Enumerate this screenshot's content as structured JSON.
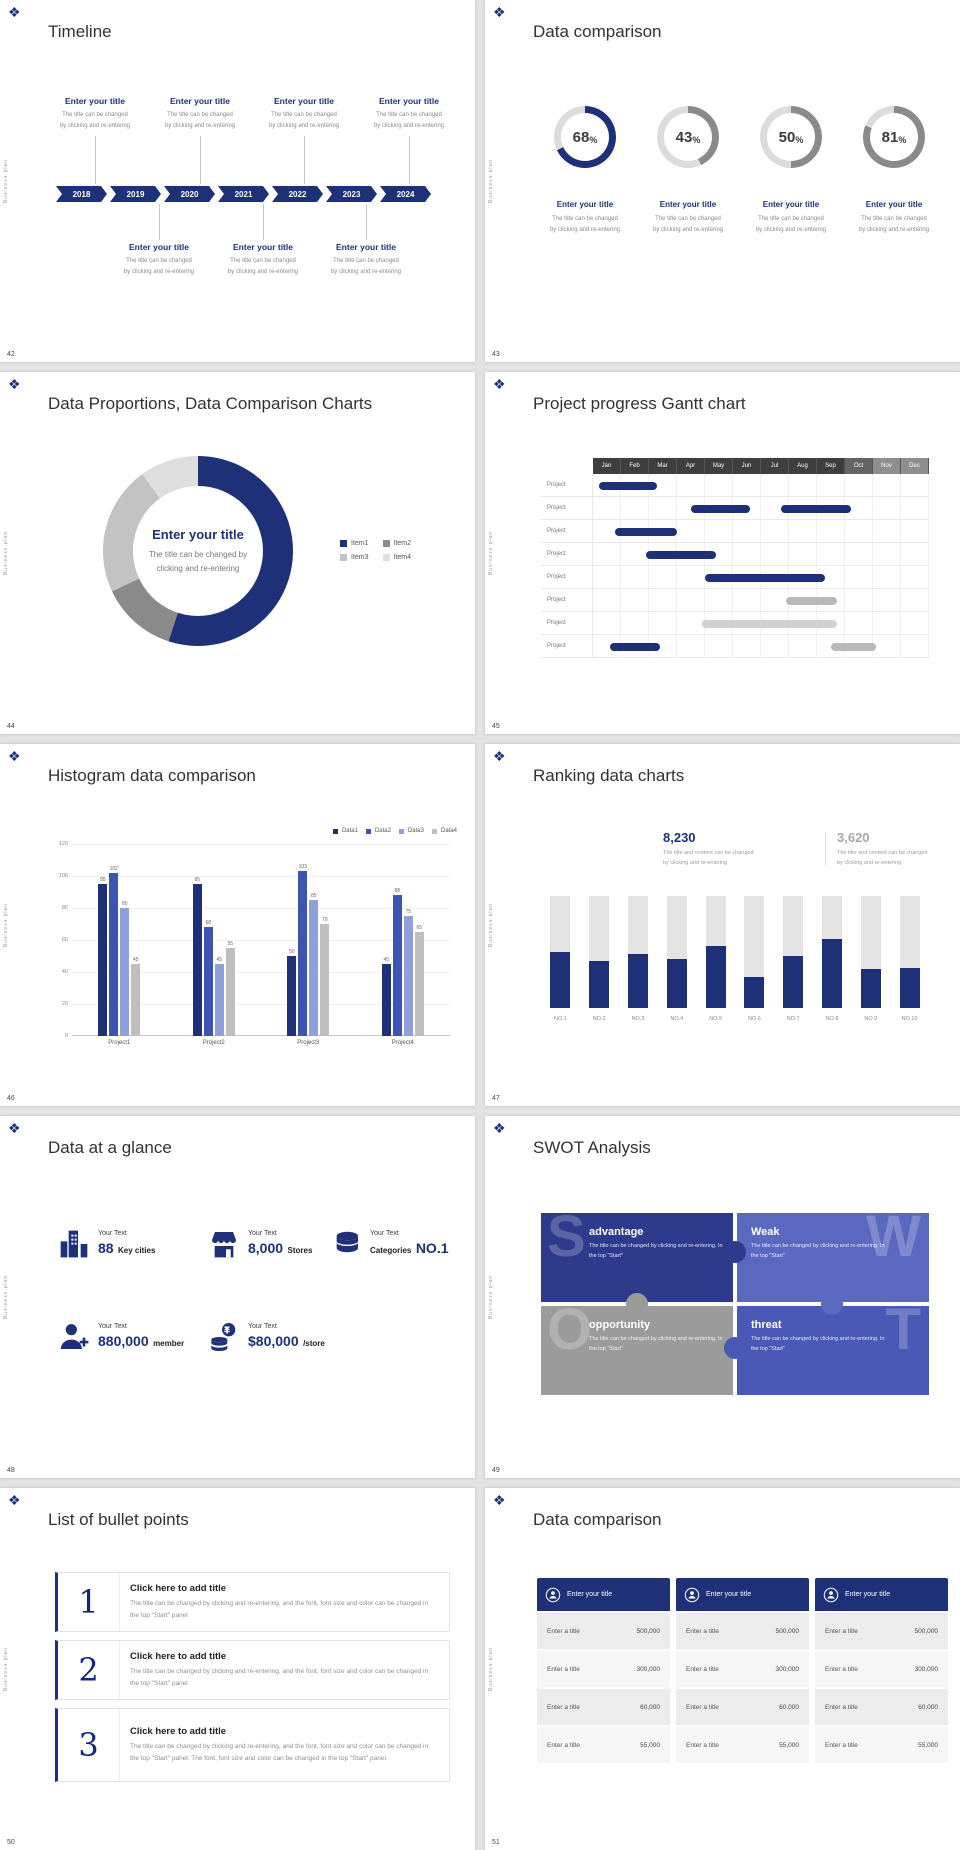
{
  "brand": {
    "vertical_text": "Business plan",
    "logo_glyph": "❖",
    "accent": "#1e3178"
  },
  "slides": {
    "timeline": {
      "number": "42",
      "title": "Timeline",
      "years": [
        "2018",
        "2019",
        "2020",
        "2021",
        "2022",
        "2023",
        "2024"
      ],
      "item_title": "Enter your title",
      "item_lines": [
        "The title can be changed",
        "by clicking and re-entering"
      ]
    },
    "rings": {
      "number": "43",
      "title": "Data comparison",
      "item_title": "Enter your title",
      "item_lines": [
        "The title can be changed",
        "by clicking and re-entering"
      ]
    },
    "donut": {
      "number": "44",
      "title": "Data Proportions, Data Comparison Charts",
      "center_title": "Enter your title",
      "center_lines": [
        "The title can be changed by",
        "clicking and re-entering"
      ]
    },
    "gantt": {
      "number": "45",
      "title": "Project progress Gantt chart"
    },
    "histogram": {
      "number": "46",
      "title": "Histogram data comparison"
    },
    "ranking": {
      "number": "47",
      "title": "Ranking data charts",
      "stat1_value": "8,230",
      "stat2_value": "3,620",
      "stat_lines": [
        "The title and content can be changed",
        "by clicking and re-entering"
      ]
    },
    "glance": {
      "number": "48",
      "title": "Data at a glance",
      "items": [
        {
          "label": "Your Text",
          "value": "88",
          "unit": "Key cities"
        },
        {
          "label": "Your Text",
          "value": "8,000",
          "unit": "Stores"
        },
        {
          "label": "Your Text",
          "unit": "Categories",
          "value": "NO.1"
        },
        {
          "label": "Your Text",
          "value": "880,000",
          "unit": "member"
        },
        {
          "label": "Your Text",
          "value": "$80,000",
          "unit": "/store"
        }
      ]
    },
    "swot": {
      "number": "49",
      "title": "SWOT Analysis",
      "pieces": [
        {
          "letter": "S",
          "heading": "advantage",
          "body": "The title can be changed by clicking and re-entering. In the top \"Start\"",
          "color": "#2e3a8c"
        },
        {
          "letter": "W",
          "heading": "Weak",
          "body": "The title can be changed by clicking and re-entering. In the top \"Start\"",
          "color": "#5b68c0"
        },
        {
          "letter": "O",
          "heading": "opportunity",
          "body": "The title can be changed by clicking and re-entering. In the top \"Start\"",
          "color": "#9b9b9b"
        },
        {
          "letter": "T",
          "heading": "threat",
          "body": "The title can be changed by clicking and re-entering. In the top \"Start\"",
          "color": "#4a59b5"
        }
      ]
    },
    "bullets": {
      "number": "50",
      "title": "List of bullet points",
      "items": [
        {
          "num": "1",
          "heading": "Click here to add title",
          "body": "The title can be changed by clicking and re-entering, and the font, font size and color can be changed in the top \"Start\" panel"
        },
        {
          "num": "2",
          "heading": "Click here to add title",
          "body": "The title can be changed by clicking and re-entering, and the font, font size and color can be changed in the top \"Start\" panel"
        },
        {
          "num": "3",
          "heading": "Click here to add title",
          "body": "The title can be changed by clicking and re-entering, and the font, font size and color can be changed in the top \"Start\" panel. The font, font size and color can be changed in the top \"Start\" panel."
        }
      ]
    },
    "tables": {
      "number": "51",
      "title": "Data comparison",
      "header_title": "Enter your title",
      "row_label": "Enter a title",
      "values": [
        "500,000",
        "300,000",
        "60,000",
        "55,000"
      ],
      "card_count": 3
    }
  },
  "chart_data": [
    {
      "id": "percent-rings",
      "type": "pie",
      "title": "Data comparison",
      "track_color": "#dcdcdc",
      "items": [
        {
          "label": "Enter your title",
          "value": 68,
          "color": "#1e3178"
        },
        {
          "label": "Enter your title",
          "value": 43,
          "color": "#8a8a8a"
        },
        {
          "label": "Enter your title",
          "value": 50,
          "color": "#8a8a8a"
        },
        {
          "label": "Enter your title",
          "value": 81,
          "color": "#8a8a8a"
        }
      ]
    },
    {
      "id": "proportion-donut",
      "type": "pie",
      "title": "Data Proportions, Data Comparison Charts",
      "labels": [
        "Item1",
        "Item2",
        "Item3",
        "Item4"
      ],
      "values": [
        55,
        13,
        22,
        10
      ],
      "colors": [
        "#1e3178",
        "#8a8a8a",
        "#c3c3c3",
        "#dedede"
      ]
    },
    {
      "id": "gantt",
      "type": "table",
      "title": "Project progress Gantt chart",
      "columns": [
        "Jan",
        "Feb",
        "Mar",
        "Apr",
        "May",
        "Jun",
        "Jul",
        "Aug",
        "Sep",
        "Oct",
        "Nov",
        "Dec"
      ],
      "row_label": "Project",
      "row_count": 8,
      "bars": [
        {
          "row": 0,
          "start": 0.2,
          "end": 2.3,
          "color": "#1e3178"
        },
        {
          "row": 1,
          "start": 3.5,
          "end": 5.6,
          "color": "#1e3178"
        },
        {
          "row": 1,
          "start": 6.7,
          "end": 9.2,
          "color": "#1e3178"
        },
        {
          "row": 2,
          "start": 0.8,
          "end": 3.0,
          "color": "#1e3178"
        },
        {
          "row": 3,
          "start": 1.9,
          "end": 4.4,
          "color": "#1e3178"
        },
        {
          "row": 4,
          "start": 4.0,
          "end": 8.3,
          "color": "#1e3178"
        },
        {
          "row": 5,
          "start": 6.9,
          "end": 8.7,
          "color": "#b9b9b9"
        },
        {
          "row": 6,
          "start": 3.9,
          "end": 8.7,
          "color": "#d2d2d2"
        },
        {
          "row": 7,
          "start": 0.6,
          "end": 2.4,
          "color": "#1e3178"
        },
        {
          "row": 7,
          "start": 8.5,
          "end": 10.1,
          "color": "#b9b9b9"
        }
      ]
    },
    {
      "id": "histogram",
      "type": "bar",
      "title": "Histogram data comparison",
      "categories": [
        "Project1",
        "Project2",
        "Project3",
        "Project4"
      ],
      "series": [
        {
          "name": "Data1",
          "color": "#1e3178",
          "values": [
            95,
            95,
            50,
            45
          ]
        },
        {
          "name": "Data2",
          "color": "#3c55b4",
          "values": [
            102,
            68,
            103,
            88
          ]
        },
        {
          "name": "Data3",
          "color": "#8fa0dc",
          "values": [
            80,
            45,
            85,
            75
          ]
        },
        {
          "name": "Data4",
          "color": "#bfbfbf",
          "values": [
            45,
            55,
            70,
            65
          ]
        }
      ],
      "ylim": [
        0,
        120
      ],
      "yticks": [
        0,
        20,
        40,
        60,
        80,
        100,
        120
      ]
    },
    {
      "id": "ranking",
      "type": "bar",
      "title": "Ranking data charts",
      "categories": [
        "NO.1",
        "NO.2",
        "NO.3",
        "NO.4",
        "NO.5",
        "NO.6",
        "NO.7",
        "NO.8",
        "NO.9",
        "NO.10"
      ],
      "values": [
        50,
        42,
        48,
        44,
        55,
        28,
        46,
        62,
        35,
        36
      ],
      "max": 100,
      "bar_color": "#1e3178",
      "track_color": "#e4e4e4"
    }
  ]
}
